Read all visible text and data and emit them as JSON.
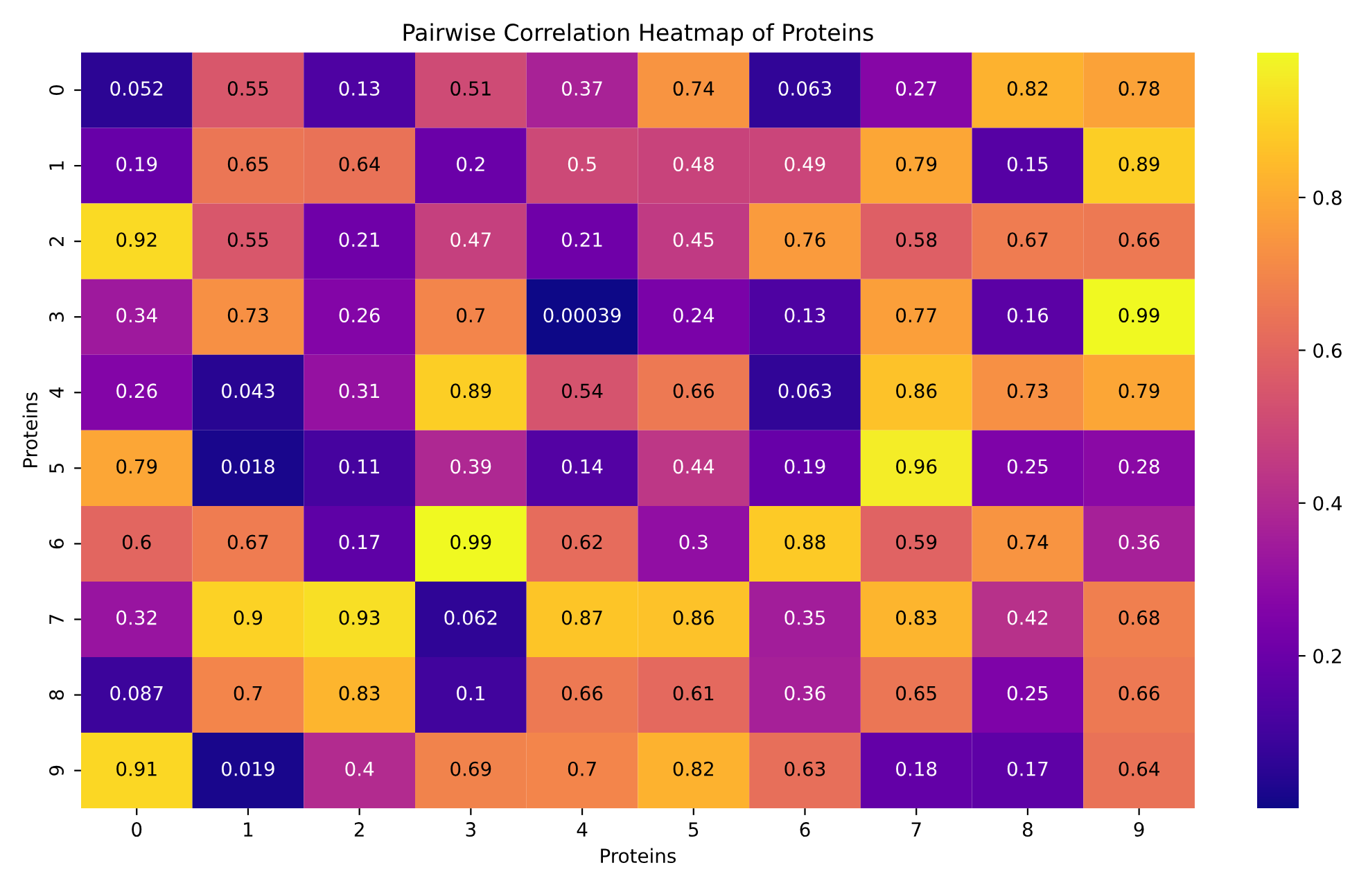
{
  "chart_data": {
    "type": "heatmap",
    "title": "Pairwise Correlation Heatmap of Proteins",
    "xlabel": "Proteins",
    "ylabel": "Proteins",
    "categories": [
      "0",
      "1",
      "2",
      "3",
      "4",
      "5",
      "6",
      "7",
      "8",
      "9"
    ],
    "y_categories": [
      "0",
      "1",
      "2",
      "3",
      "4",
      "5",
      "6",
      "7",
      "8",
      "9"
    ],
    "cells": [
      [
        0.052,
        0.55,
        0.13,
        0.51,
        0.37,
        0.74,
        0.063,
        0.27,
        0.82,
        0.78
      ],
      [
        0.19,
        0.65,
        0.64,
        0.2,
        0.5,
        0.48,
        0.49,
        0.79,
        0.15,
        0.89
      ],
      [
        0.92,
        0.55,
        0.21,
        0.47,
        0.21,
        0.45,
        0.76,
        0.58,
        0.67,
        0.66
      ],
      [
        0.34,
        0.73,
        0.26,
        0.7,
        0.00039,
        0.24,
        0.13,
        0.77,
        0.16,
        0.99
      ],
      [
        0.26,
        0.043,
        0.31,
        0.89,
        0.54,
        0.66,
        0.063,
        0.86,
        0.73,
        0.79
      ],
      [
        0.79,
        0.018,
        0.11,
        0.39,
        0.14,
        0.44,
        0.19,
        0.96,
        0.25,
        0.28
      ],
      [
        0.6,
        0.67,
        0.17,
        0.99,
        0.62,
        0.3,
        0.88,
        0.59,
        0.74,
        0.36
      ],
      [
        0.32,
        0.9,
        0.93,
        0.062,
        0.87,
        0.86,
        0.35,
        0.83,
        0.42,
        0.68
      ],
      [
        0.087,
        0.7,
        0.83,
        0.1,
        0.66,
        0.61,
        0.36,
        0.65,
        0.25,
        0.66
      ],
      [
        0.91,
        0.019,
        0.4,
        0.69,
        0.7,
        0.82,
        0.63,
        0.18,
        0.17,
        0.64
      ]
    ],
    "clim": [
      0.00039,
      0.99
    ],
    "cticks": [
      0.2,
      0.4,
      0.6,
      0.8
    ],
    "data_labels": true
  }
}
